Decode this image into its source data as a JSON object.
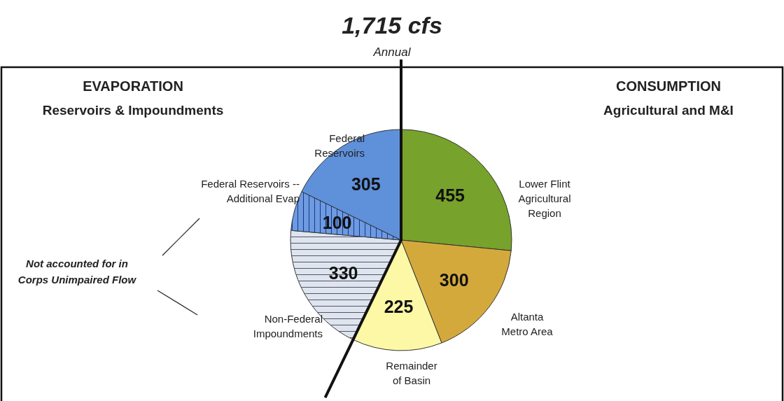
{
  "chart_data": {
    "type": "pie",
    "title": "1,715 cfs",
    "subtitle": "Annual",
    "categories": [
      "Lower Flint\nAgricultural\nRegion",
      "Altanta\nMetro Area",
      "Remainder\nof Basin",
      "Non-Federal\nImpoundments",
      "Federal Reservoirs --\nAdditional Evap",
      "Federal\nReservoirs"
    ],
    "values": [
      455,
      300,
      225,
      330,
      100,
      305
    ],
    "colors": [
      "#77a22b",
      "#d4a93c",
      "#fdf8a6",
      "#dfe5ef",
      "#6e9ae0",
      "#5f90da"
    ],
    "data_labels": true,
    "annotations": [
      "EVAPORATION",
      "Reservoirs & Impoundments",
      "CONSUMPTION",
      "Agricultural and M&I",
      "Not accounted for in\nCorps Unimpaired Flow"
    ]
  }
}
